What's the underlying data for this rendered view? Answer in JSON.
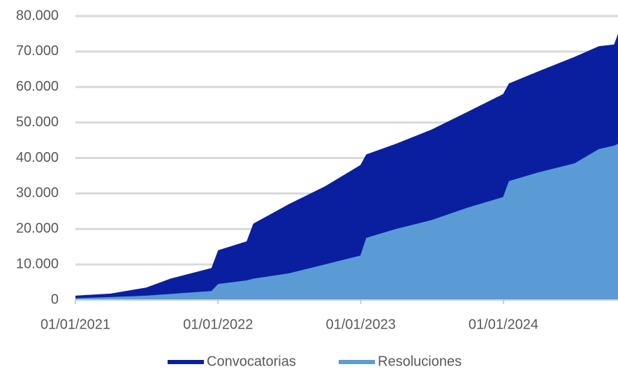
{
  "chart_data": {
    "type": "area",
    "x": [
      "2021-01-01",
      "2021-04-01",
      "2021-07-01",
      "2021-09-01",
      "2021-12-15",
      "2022-01-01",
      "2022-03-15",
      "2022-04-01",
      "2022-07-01",
      "2022-10-01",
      "2022-12-31",
      "2023-01-15",
      "2023-04-01",
      "2023-07-01",
      "2023-10-01",
      "2023-12-31",
      "2024-01-15",
      "2024-04-01",
      "2024-07-01",
      "2024-09-01",
      "2024-10-10",
      "2024-10-20"
    ],
    "series": [
      {
        "name": "Convocatorias",
        "color": "#0a1f9f",
        "values": [
          1200,
          1800,
          3500,
          6000,
          9000,
          14000,
          16500,
          21500,
          27000,
          32000,
          38000,
          41000,
          44000,
          48000,
          53000,
          58000,
          61000,
          64500,
          68500,
          71500,
          72000,
          75000
        ]
      },
      {
        "name": "Resoluciones",
        "color": "#5b9bd5",
        "values": [
          500,
          800,
          1200,
          1700,
          2500,
          4500,
          5500,
          6000,
          7500,
          10000,
          12500,
          17500,
          20000,
          22500,
          26000,
          29000,
          33500,
          36000,
          38500,
          42500,
          43500,
          44000
        ]
      }
    ],
    "xlim": [
      "2021-01-01",
      "2024-10-20"
    ],
    "xticks": [
      {
        "value": "2021-01-01",
        "label": "01/01/2021"
      },
      {
        "value": "2022-01-01",
        "label": "01/01/2022"
      },
      {
        "value": "2023-01-01",
        "label": "01/01/2023"
      },
      {
        "value": "2024-01-01",
        "label": "01/01/2024"
      }
    ],
    "ylim": [
      0,
      80000
    ],
    "yticks": [
      0,
      {
        "value": 10000,
        "label": "10.000"
      },
      {
        "value": 20000,
        "label": "20.000"
      },
      {
        "value": 30000,
        "label": "30.000"
      },
      {
        "value": 40000,
        "label": "40.000"
      },
      {
        "value": 50000,
        "label": "50.000"
      },
      {
        "value": 60000,
        "label": "60.000"
      },
      {
        "value": 70000,
        "label": "70.000"
      },
      {
        "value": 80000,
        "label": "80.000"
      }
    ],
    "grid": true,
    "legend": "bottom"
  }
}
